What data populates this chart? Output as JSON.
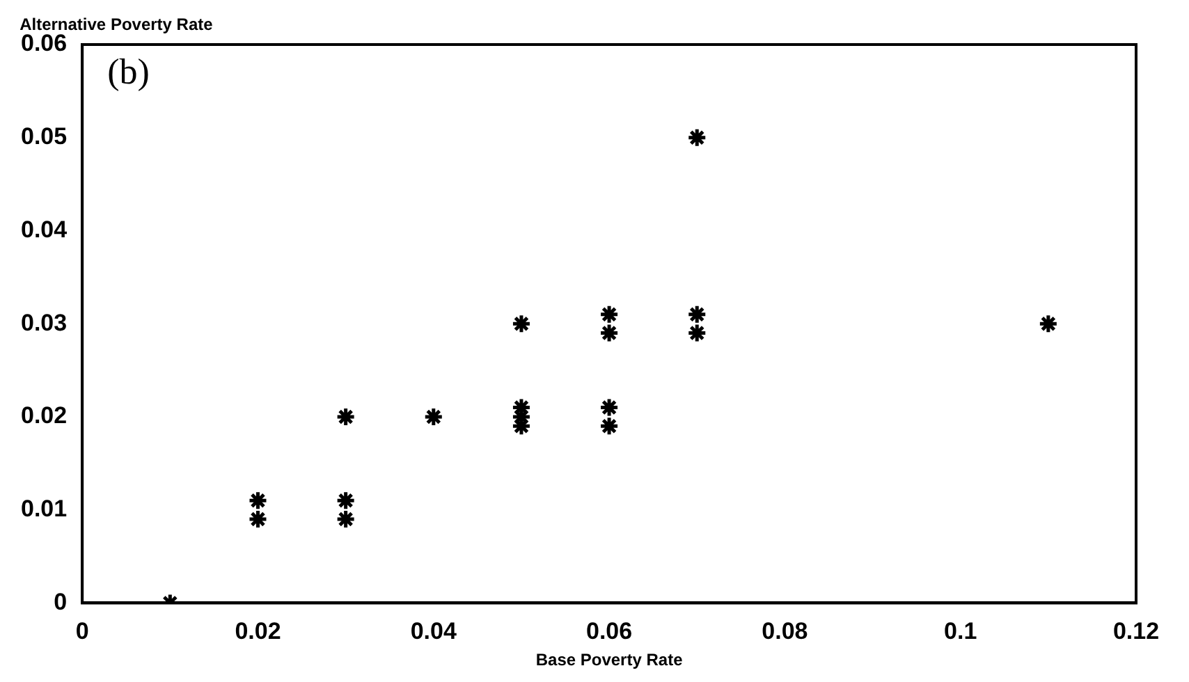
{
  "chart_data": {
    "type": "scatter",
    "xlabel": "Base Poverty Rate",
    "ylabel": "Alternative Poverty Rate",
    "annotations": [
      "(b)"
    ],
    "x": [
      0.01,
      0.02,
      0.02,
      0.03,
      0.03,
      0.03,
      0.04,
      0.05,
      0.05,
      0.05,
      0.05,
      0.06,
      0.06,
      0.06,
      0.06,
      0.07,
      0.07,
      0.07,
      0.11
    ],
    "series": [
      {
        "color": "#000000",
        "values": [
          0,
          0.011,
          0.009,
          0.02,
          0.011,
          0.009,
          0.02,
          0.03,
          0.021,
          0.02,
          0.019,
          0.031,
          0.029,
          0.021,
          0.019,
          0.05,
          0.031,
          0.029,
          0.03
        ]
      }
    ],
    "xlim": [
      0,
      0.12
    ],
    "xticks": [
      0,
      0.02,
      0.04,
      0.06,
      0.08,
      0.1,
      0.12
    ],
    "ylim": [
      0,
      0.06
    ],
    "yticks": [
      0,
      0.01,
      0.02,
      0.03,
      0.04,
      0.05,
      0.06
    ],
    "marker": "cross",
    "grid": false,
    "legend": false
  }
}
